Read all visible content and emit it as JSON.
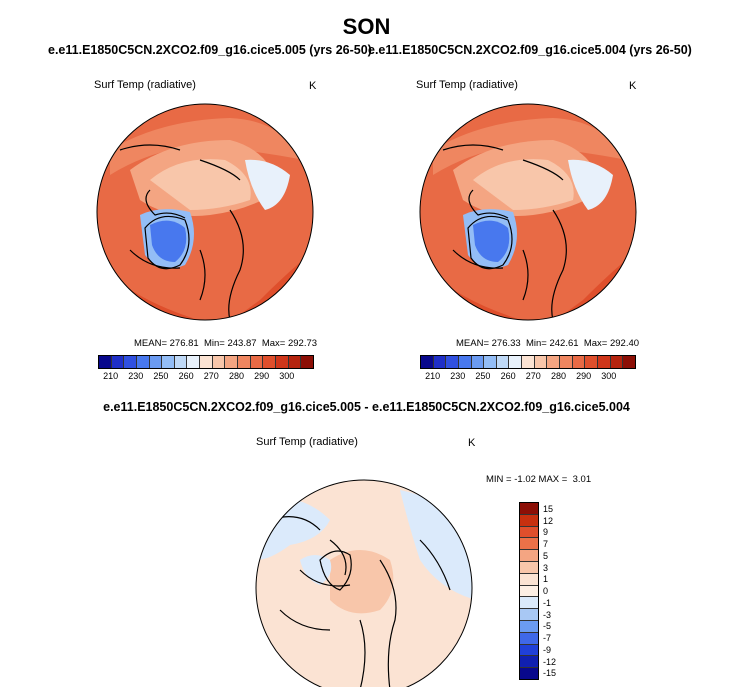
{
  "title": "SON",
  "panels": {
    "left": {
      "case_header": "e.e11.E1850C5CN.2XCO2.f09_g16.cice5.005 (yrs 26-50)",
      "variable": "Surf Temp (radiative)",
      "units": "K",
      "stats": {
        "mean_label": "MEAN=",
        "mean": "276.81",
        "min_label": "Min=",
        "min": "243.87",
        "max_label": "Max=",
        "max": "292.73"
      }
    },
    "right": {
      "case_header": "e.e11.E1850C5CN.2XCO2.f09_g16.cice5.004 (yrs 26-50)",
      "variable": "Surf Temp (radiative)",
      "units": "K",
      "stats": {
        "mean_label": "MEAN=",
        "mean": "276.33",
        "min_label": "Min=",
        "min": "242.61",
        "max_label": "Max=",
        "max": "292.40"
      }
    },
    "diff": {
      "title": "e.e11.E1850C5CN.2XCO2.f09_g16.cice5.005 - e.e11.E1850C5CN.2XCO2.f09_g16.cice5.004",
      "variable": "Surf Temp (radiative)",
      "units": "K",
      "stats": {
        "min_label": "MIN =",
        "min": "-1.02",
        "max_label": "MAX =",
        "max": "3.01"
      }
    }
  },
  "colorbar_abs": {
    "tick_labels": [
      "210",
      "230",
      "250",
      "260",
      "270",
      "280",
      "290",
      "300"
    ],
    "colors": [
      "#08088c",
      "#1f2fc8",
      "#3050e0",
      "#4878ee",
      "#6b9bf2",
      "#93bdf6",
      "#bfd9f7",
      "#e8f1fb",
      "#fbe3d3",
      "#f8c6aa",
      "#f4a582",
      "#ef8660",
      "#e86a45",
      "#df4f2c",
      "#cf361a",
      "#b5240e",
      "#8c0f06"
    ]
  },
  "colorbar_diff": {
    "tick_labels": [
      "15",
      "12",
      "9",
      "7",
      "5",
      "3",
      "1",
      "0",
      "-1",
      "-3",
      "-5",
      "-7",
      "-9",
      "-12",
      "-15"
    ],
    "colors": [
      "#8c0f06",
      "#c7300f",
      "#df4f2c",
      "#ec7148",
      "#f4a582",
      "#f8c6aa",
      "#fbe3d3",
      "#fdefe4",
      "#dbeafb",
      "#a8c8f4",
      "#6b9bf2",
      "#3f68e8",
      "#2040d8",
      "#1020b0",
      "#08088c"
    ]
  }
}
